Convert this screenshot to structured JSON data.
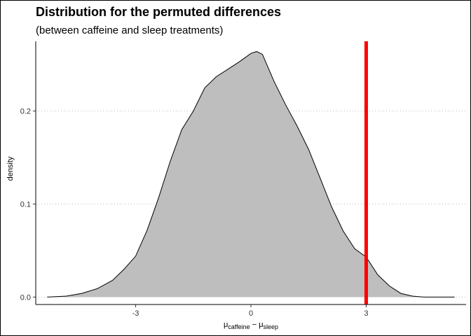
{
  "chart_data": {
    "type": "area",
    "title": "Distribution for the permuted differences",
    "subtitle": "(between caffeine and sleep treatments)",
    "ylabel": "density",
    "xlabel": {
      "mu1": "μ",
      "sub1": "caffeine",
      "minus": " − ",
      "mu2": "μ",
      "sub2": "sleep"
    },
    "xlim": [
      -5.6,
      5.6
    ],
    "ylim": [
      -0.008,
      0.275
    ],
    "x_ticks": [
      -3,
      0,
      3
    ],
    "x_tick_labels": [
      "-3",
      "0",
      "3"
    ],
    "y_ticks": [
      0.0,
      0.1,
      0.2
    ],
    "y_tick_labels": [
      "0.0",
      "0.1",
      "0.2"
    ],
    "grid": "horizontal dotted",
    "fill_color": "#bebebe",
    "line_color": "#000000",
    "reference_line": {
      "x": 3.0,
      "color": "#ff0000"
    },
    "series": [
      {
        "x": [
          -5.3,
          -4.8,
          -4.4,
          -4.0,
          -3.6,
          -3.3,
          -3.0,
          -2.7,
          -2.4,
          -2.1,
          -1.8,
          -1.5,
          -1.2,
          -0.9,
          -0.6,
          -0.3,
          0.0,
          0.15,
          0.3,
          0.6,
          0.9,
          1.2,
          1.5,
          1.8,
          2.1,
          2.4,
          2.7,
          3.0,
          3.3,
          3.6,
          3.9,
          4.2,
          4.5,
          5.3
        ],
        "y": [
          0.0,
          0.001,
          0.004,
          0.009,
          0.018,
          0.03,
          0.044,
          0.072,
          0.107,
          0.146,
          0.18,
          0.2,
          0.225,
          0.237,
          0.245,
          0.253,
          0.262,
          0.264,
          0.261,
          0.232,
          0.207,
          0.184,
          0.159,
          0.128,
          0.097,
          0.071,
          0.052,
          0.043,
          0.024,
          0.012,
          0.004,
          0.001,
          0.0,
          0.0
        ]
      }
    ]
  }
}
